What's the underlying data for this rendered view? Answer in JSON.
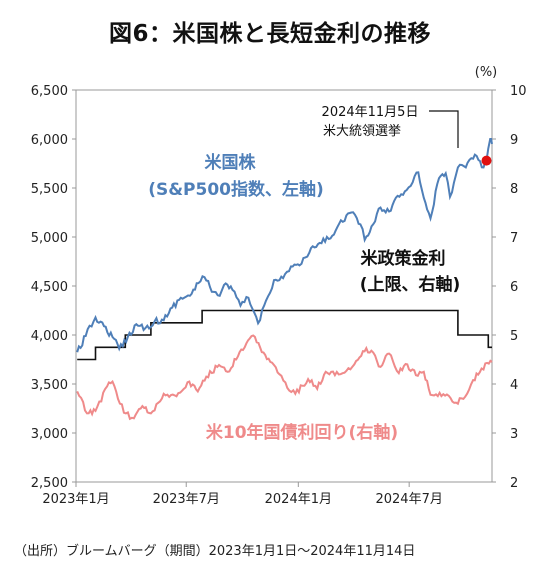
{
  "title": "図6：米国株と長短金利の推移",
  "source": "（出所）ブルームバーグ（期間）2023年1月1日～2024年11月14日",
  "colors": {
    "sp500": "#4f7fb8",
    "treasury": "#ef8a8a",
    "policy": "#111111",
    "marker": "#e01010",
    "axis": "#999999"
  },
  "chart_data": {
    "type": "line",
    "y_left": {
      "min": 2500,
      "max": 6500,
      "ticks": [
        "2,500",
        "3,000",
        "3,500",
        "4,000",
        "4,500",
        "5,000",
        "5,500",
        "6,000",
        "6,500"
      ]
    },
    "y_right": {
      "min": 2,
      "max": 10,
      "unit": "(%)",
      "ticks": [
        "2",
        "3",
        "4",
        "5",
        "6",
        "7",
        "8",
        "9",
        "10"
      ]
    },
    "x": {
      "start": "2023-01-01",
      "end": "2024-11-14",
      "ticks": [
        {
          "date": "2023-01-01",
          "label": "2023年1月"
        },
        {
          "date": "2023-07-01",
          "label": "2023年7月"
        },
        {
          "date": "2024-01-01",
          "label": "2024年1月"
        },
        {
          "date": "2024-07-01",
          "label": "2024年7月"
        }
      ]
    },
    "annotations": {
      "sp500": [
        "米国株",
        "(S&P500指数、左軸)"
      ],
      "policy": [
        "米政策金利",
        "(上限、右軸)"
      ],
      "treasury": "米10年国債利回り(右軸)",
      "event": [
        "2024年11月5日",
        "米大統領選挙"
      ]
    },
    "event": {
      "date": "2024-11-05",
      "value": 5780
    },
    "series": [
      {
        "axis": "left",
        "points": [
          [
            "2023-01-03",
            3824
          ],
          [
            "2023-01-17",
            3990
          ],
          [
            "2023-02-02",
            4180
          ],
          [
            "2023-02-16",
            4090
          ],
          [
            "2023-03-02",
            3980
          ],
          [
            "2023-03-13",
            3860
          ],
          [
            "2023-03-27",
            3980
          ],
          [
            "2023-04-10",
            4110
          ],
          [
            "2023-04-25",
            4070
          ],
          [
            "2023-05-10",
            4140
          ],
          [
            "2023-05-25",
            4150
          ],
          [
            "2023-06-08",
            4280
          ],
          [
            "2023-06-22",
            4380
          ],
          [
            "2023-07-07",
            4400
          ],
          [
            "2023-07-21",
            4530
          ],
          [
            "2023-07-31",
            4590
          ],
          [
            "2023-08-15",
            4440
          ],
          [
            "2023-08-25",
            4400
          ],
          [
            "2023-09-01",
            4510
          ],
          [
            "2023-09-15",
            4460
          ],
          [
            "2023-09-28",
            4300
          ],
          [
            "2023-10-11",
            4380
          ],
          [
            "2023-10-27",
            4120
          ],
          [
            "2023-11-09",
            4350
          ],
          [
            "2023-11-22",
            4560
          ],
          [
            "2023-12-07",
            4580
          ],
          [
            "2023-12-20",
            4700
          ],
          [
            "2024-01-03",
            4710
          ],
          [
            "2024-01-19",
            4840
          ],
          [
            "2024-02-05",
            4940
          ],
          [
            "2024-02-20",
            4980
          ],
          [
            "2024-03-05",
            5100
          ],
          [
            "2024-03-20",
            5220
          ],
          [
            "2024-03-28",
            5250
          ],
          [
            "2024-04-12",
            5130
          ],
          [
            "2024-04-19",
            4970
          ],
          [
            "2024-05-03",
            5130
          ],
          [
            "2024-05-15",
            5300
          ],
          [
            "2024-05-29",
            5260
          ],
          [
            "2024-06-12",
            5420
          ],
          [
            "2024-06-27",
            5480
          ],
          [
            "2024-07-10",
            5620
          ],
          [
            "2024-07-16",
            5660
          ],
          [
            "2024-07-25",
            5400
          ],
          [
            "2024-08-05",
            5190
          ],
          [
            "2024-08-19",
            5600
          ],
          [
            "2024-08-30",
            5650
          ],
          [
            "2024-09-06",
            5410
          ],
          [
            "2024-09-19",
            5710
          ],
          [
            "2024-10-02",
            5710
          ],
          [
            "2024-10-17",
            5840
          ],
          [
            "2024-10-31",
            5710
          ],
          [
            "2024-11-05",
            5780
          ],
          [
            "2024-11-11",
            6000
          ],
          [
            "2024-11-14",
            5950
          ]
        ]
      },
      {
        "axis": "right",
        "points": [
          [
            "2023-01-03",
            3.85
          ],
          [
            "2023-01-19",
            3.4
          ],
          [
            "2023-02-02",
            3.45
          ],
          [
            "2023-02-21",
            3.95
          ],
          [
            "2023-03-02",
            4.05
          ],
          [
            "2023-03-14",
            3.6
          ],
          [
            "2023-03-24",
            3.4
          ],
          [
            "2023-04-06",
            3.3
          ],
          [
            "2023-04-20",
            3.55
          ],
          [
            "2023-05-04",
            3.4
          ],
          [
            "2023-05-25",
            3.8
          ],
          [
            "2023-06-15",
            3.75
          ],
          [
            "2023-07-06",
            4.05
          ],
          [
            "2023-07-20",
            3.85
          ],
          [
            "2023-08-03",
            4.15
          ],
          [
            "2023-08-21",
            4.35
          ],
          [
            "2023-09-07",
            4.25
          ],
          [
            "2023-09-21",
            4.5
          ],
          [
            "2023-10-05",
            4.75
          ],
          [
            "2023-10-19",
            4.99
          ],
          [
            "2023-11-02",
            4.65
          ],
          [
            "2023-11-16",
            4.45
          ],
          [
            "2023-12-01",
            4.2
          ],
          [
            "2023-12-14",
            3.92
          ],
          [
            "2023-12-27",
            3.8
          ],
          [
            "2024-01-17",
            4.1
          ],
          [
            "2024-02-01",
            3.9
          ],
          [
            "2024-02-15",
            4.25
          ],
          [
            "2024-03-01",
            4.18
          ],
          [
            "2024-03-20",
            4.27
          ],
          [
            "2024-04-02",
            4.4
          ],
          [
            "2024-04-16",
            4.67
          ],
          [
            "2024-04-30",
            4.68
          ],
          [
            "2024-05-15",
            4.35
          ],
          [
            "2024-05-29",
            4.62
          ],
          [
            "2024-06-14",
            4.22
          ],
          [
            "2024-06-28",
            4.4
          ],
          [
            "2024-07-12",
            4.18
          ],
          [
            "2024-07-25",
            4.25
          ],
          [
            "2024-08-05",
            3.78
          ],
          [
            "2024-08-20",
            3.82
          ],
          [
            "2024-09-04",
            3.76
          ],
          [
            "2024-09-16",
            3.62
          ],
          [
            "2024-10-01",
            3.74
          ],
          [
            "2024-10-14",
            4.08
          ],
          [
            "2024-10-25",
            4.24
          ],
          [
            "2024-11-06",
            4.43
          ],
          [
            "2024-11-14",
            4.45
          ]
        ]
      },
      {
        "axis": "right",
        "step": true,
        "points": [
          [
            "2023-01-03",
            4.5
          ],
          [
            "2023-02-02",
            4.75
          ],
          [
            "2023-03-23",
            5.0
          ],
          [
            "2023-05-04",
            5.25
          ],
          [
            "2023-07-27",
            5.5
          ],
          [
            "2024-09-19",
            5.0
          ],
          [
            "2024-11-08",
            4.75
          ],
          [
            "2024-11-14",
            4.75
          ]
        ]
      }
    ]
  }
}
